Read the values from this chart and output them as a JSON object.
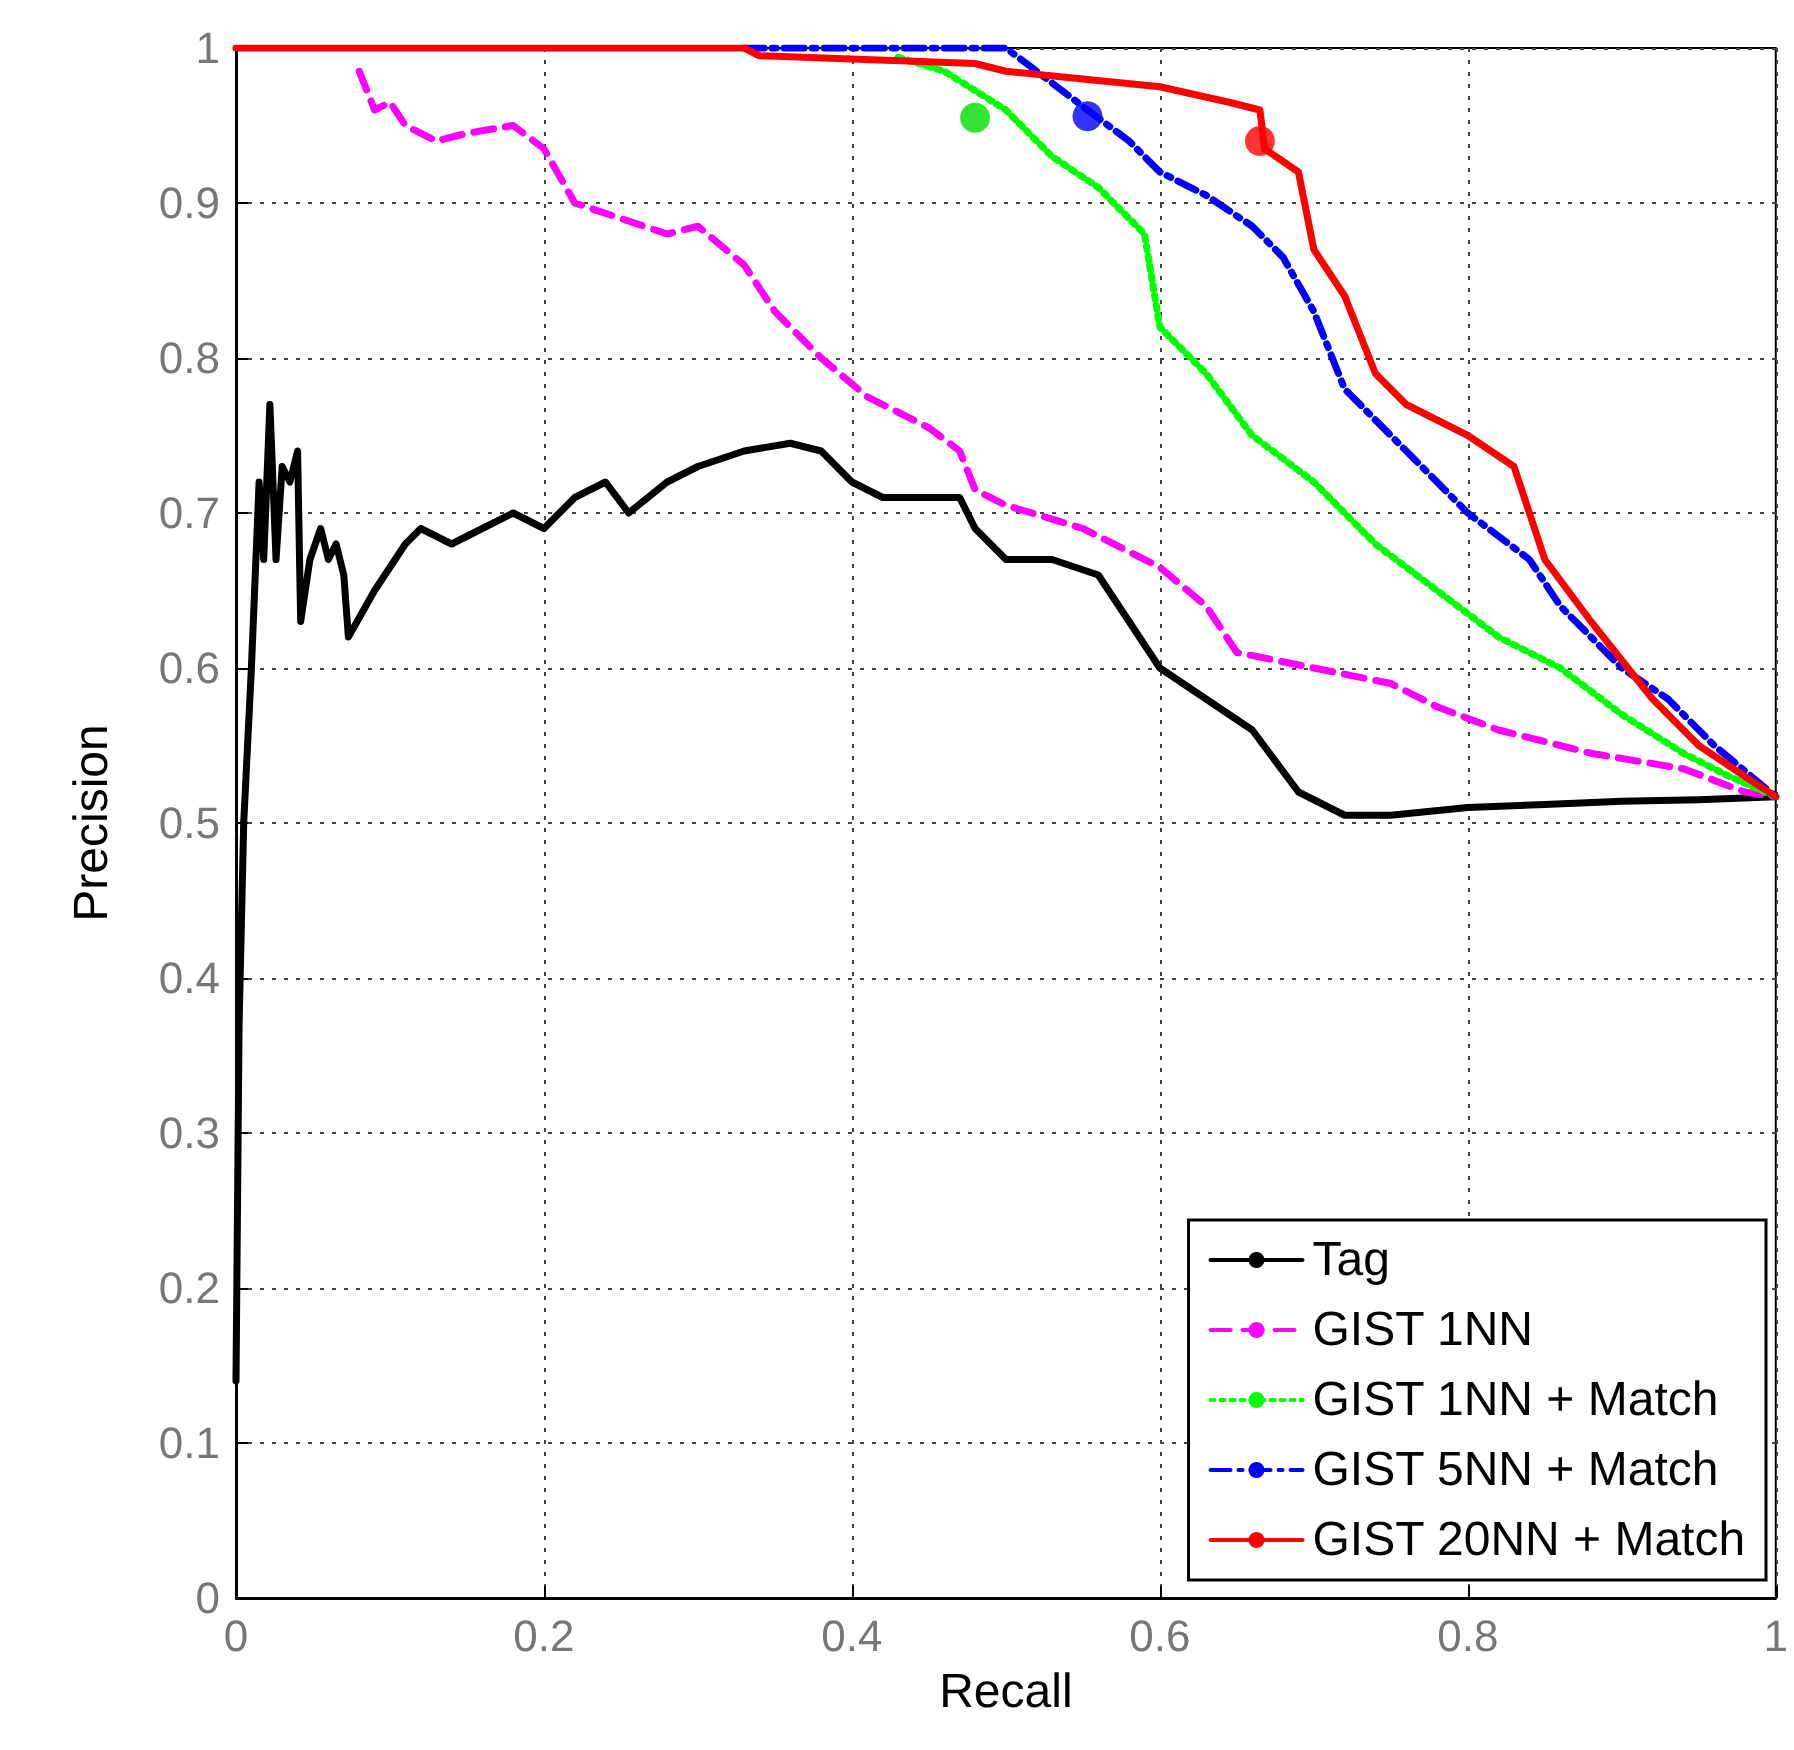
{
  "chart_data": {
    "type": "line",
    "xlabel": "Recall",
    "ylabel": "Precision",
    "xlim": [
      0,
      1
    ],
    "ylim": [
      0,
      1
    ],
    "xticks": [
      0,
      0.2,
      0.4,
      0.6,
      0.8,
      1
    ],
    "yticks": [
      0,
      0.1,
      0.2,
      0.3,
      0.4,
      0.5,
      0.6,
      0.7,
      0.8,
      0.9,
      1
    ],
    "grid": true,
    "legend": "bottom right",
    "marker": "none",
    "series": [
      {
        "name": "Tag",
        "color": "#000000",
        "line_style": "solid",
        "x": [
          0,
          0.002,
          0.005,
          0.01,
          0.015,
          0.018,
          0.022,
          0.026,
          0.03,
          0.035,
          0.04,
          0.042,
          0.048,
          0.055,
          0.06,
          0.065,
          0.07,
          0.073,
          0.09,
          0.11,
          0.12,
          0.14,
          0.16,
          0.18,
          0.2,
          0.22,
          0.24,
          0.255,
          0.28,
          0.3,
          0.33,
          0.36,
          0.38,
          0.4,
          0.42,
          0.45,
          0.47,
          0.48,
          0.5,
          0.53,
          0.56,
          0.58,
          0.6,
          0.63,
          0.66,
          0.69,
          0.72,
          0.75,
          0.8,
          0.85,
          0.9,
          0.95,
          1
        ],
        "values": [
          0.14,
          0.37,
          0.5,
          0.6,
          0.72,
          0.67,
          0.77,
          0.67,
          0.73,
          0.72,
          0.74,
          0.63,
          0.67,
          0.69,
          0.67,
          0.68,
          0.66,
          0.62,
          0.65,
          0.68,
          0.69,
          0.68,
          0.69,
          0.7,
          0.69,
          0.71,
          0.72,
          0.7,
          0.72,
          0.73,
          0.74,
          0.745,
          0.74,
          0.72,
          0.71,
          0.71,
          0.71,
          0.69,
          0.67,
          0.67,
          0.66,
          0.63,
          0.6,
          0.58,
          0.56,
          0.52,
          0.505,
          0.505,
          0.51,
          0.512,
          0.514,
          0.515,
          0.517
        ]
      },
      {
        "name": "GIST 1NN",
        "color": "#ff00ff",
        "line_style": "dashed",
        "x": [
          0.08,
          0.09,
          0.1,
          0.11,
          0.13,
          0.15,
          0.18,
          0.2,
          0.22,
          0.25,
          0.28,
          0.3,
          0.33,
          0.35,
          0.38,
          0.41,
          0.43,
          0.45,
          0.47,
          0.48,
          0.5,
          0.55,
          0.6,
          0.63,
          0.65,
          0.7,
          0.75,
          0.78,
          0.82,
          0.88,
          0.94,
          0.98,
          1
        ],
        "values": [
          0.985,
          0.96,
          0.965,
          0.95,
          0.94,
          0.945,
          0.95,
          0.935,
          0.9,
          0.89,
          0.88,
          0.885,
          0.86,
          0.83,
          0.8,
          0.775,
          0.765,
          0.755,
          0.74,
          0.715,
          0.705,
          0.69,
          0.665,
          0.64,
          0.61,
          0.6,
          0.59,
          0.575,
          0.56,
          0.545,
          0.535,
          0.52,
          0.517
        ]
      },
      {
        "name": "GIST 1NN + Match",
        "color": "#00ff00",
        "line_style": "dotted",
        "x": [
          0.43,
          0.46,
          0.5,
          0.53,
          0.56,
          0.59,
          0.6,
          0.63,
          0.66,
          0.7,
          0.74,
          0.78,
          0.82,
          0.86,
          0.9,
          0.94,
          0.97,
          1
        ],
        "values": [
          0.994,
          0.985,
          0.96,
          0.93,
          0.91,
          0.88,
          0.82,
          0.79,
          0.75,
          0.72,
          0.68,
          0.65,
          0.62,
          0.6,
          0.57,
          0.545,
          0.53,
          0.517
        ]
      },
      {
        "name": "GIST 5NN + Match",
        "color": "#0000ff",
        "line_style": "dashdot",
        "x": [
          0.33,
          0.5,
          0.52,
          0.553,
          0.58,
          0.6,
          0.63,
          0.66,
          0.68,
          0.7,
          0.72,
          0.75,
          0.8,
          0.84,
          0.86,
          0.9,
          0.93,
          0.96,
          1
        ],
        "values": [
          1,
          1,
          0.985,
          0.96,
          0.94,
          0.92,
          0.905,
          0.885,
          0.865,
          0.83,
          0.78,
          0.75,
          0.7,
          0.67,
          0.64,
          0.6,
          0.58,
          0.55,
          0.517
        ]
      },
      {
        "name": "GIST 20NN + Match",
        "color": "#ff0000",
        "line_style": "solid",
        "x": [
          0,
          0.33,
          0.34,
          0.48,
          0.5,
          0.55,
          0.6,
          0.645,
          0.665,
          0.668,
          0.69,
          0.7,
          0.72,
          0.74,
          0.76,
          0.8,
          0.83,
          0.85,
          0.88,
          0.92,
          0.95,
          0.98,
          1
        ],
        "values": [
          1,
          1,
          0.995,
          0.99,
          0.985,
          0.98,
          0.975,
          0.965,
          0.96,
          0.935,
          0.92,
          0.87,
          0.84,
          0.79,
          0.77,
          0.75,
          0.73,
          0.67,
          0.63,
          0.58,
          0.55,
          0.53,
          0.517
        ]
      },
      {
        "type": "scatter",
        "marker": "circle",
        "color": "#00dd00",
        "x": [
          0.48
        ],
        "values": [
          0.955
        ]
      },
      {
        "type": "scatter",
        "marker": "circle",
        "color": "#0000ff",
        "x": [
          0.553
        ],
        "values": [
          0.956
        ]
      },
      {
        "type": "scatter",
        "marker": "circle",
        "color": "#ff0000",
        "x": [
          0.665
        ],
        "values": [
          0.94
        ]
      }
    ]
  }
}
